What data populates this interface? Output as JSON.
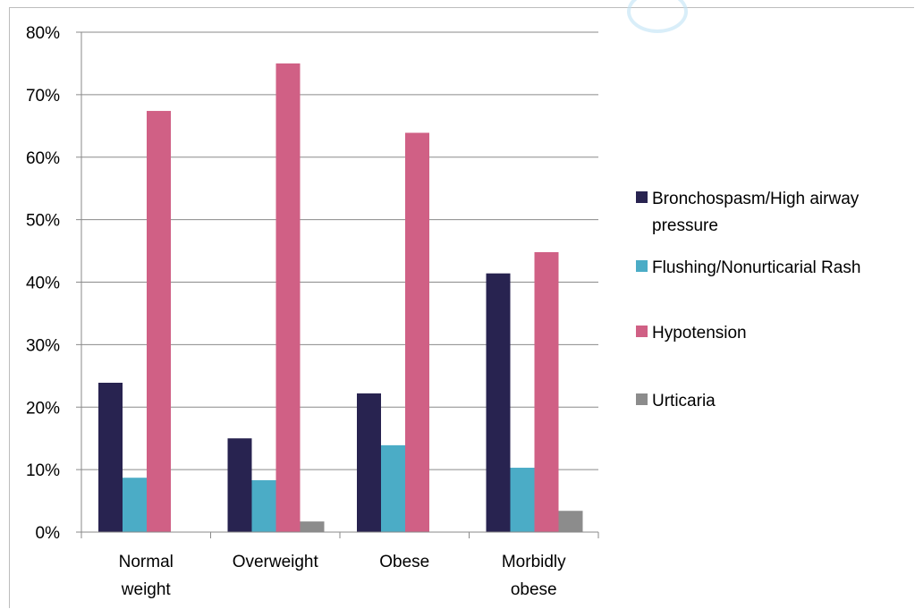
{
  "chart_data": {
    "type": "bar",
    "title": "",
    "xlabel": "",
    "ylabel": "",
    "categories": [
      [
        "Normal",
        "weight"
      ],
      [
        "Overweight"
      ],
      [
        "Obese"
      ],
      [
        "Morbidly",
        "obese"
      ]
    ],
    "ylim": [
      0,
      80
    ],
    "yticks": [
      "0%",
      "10%",
      "20%",
      "30%",
      "40%",
      "50%",
      "60%",
      "70%",
      "80%"
    ],
    "grid": true,
    "legend_position": "right",
    "series": [
      {
        "name": "Bronchospasm/High airway pressure",
        "legend_lines": [
          "Bronchospasm/High airway",
          "pressure"
        ],
        "color": "#282350",
        "values": [
          23.9,
          15.0,
          22.2,
          41.4
        ]
      },
      {
        "name": "Flushing/Nonurticarial Rash",
        "legend_lines": [
          "Flushing/Nonurticarial Rash"
        ],
        "color": "#4bacc6",
        "values": [
          8.7,
          8.3,
          13.9,
          10.3
        ]
      },
      {
        "name": "Hypotension",
        "legend_lines": [
          "Hypotension"
        ],
        "color": "#d06085",
        "values": [
          67.4,
          75.0,
          63.9,
          44.8
        ]
      },
      {
        "name": "Urticaria",
        "legend_lines": [
          "Urticaria"
        ],
        "color": "#8c8c8c",
        "values": [
          0,
          1.7,
          0,
          3.4
        ]
      }
    ]
  }
}
